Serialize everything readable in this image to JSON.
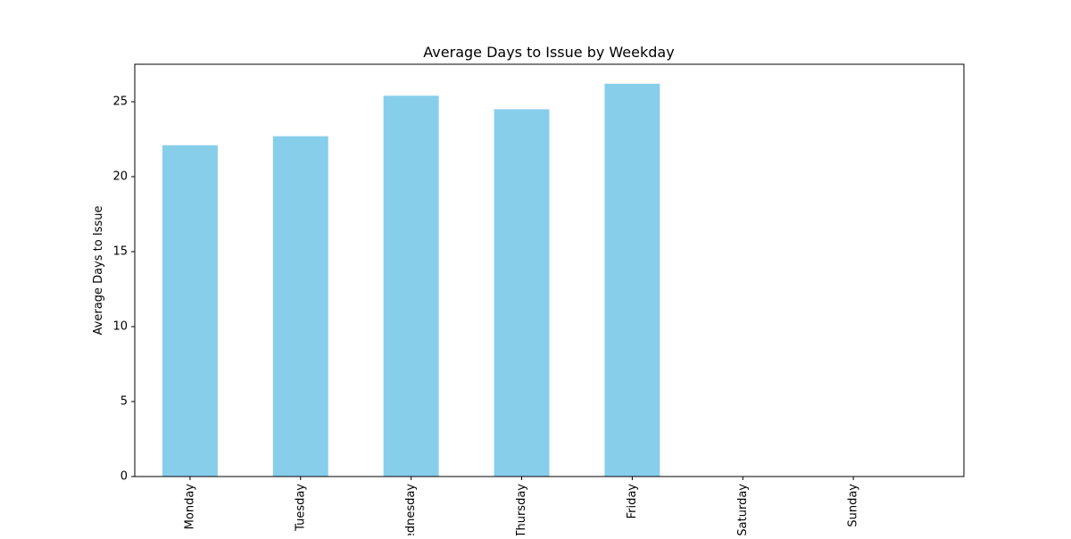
{
  "chart_data": {
    "type": "bar",
    "title": "Average Days to Issue by Weekday",
    "xlabel": "",
    "ylabel": "Average Days to Issue",
    "categories": [
      "Monday",
      "Tuesday",
      "Wednesday",
      "Thursday",
      "Friday",
      "Saturday",
      "Sunday"
    ],
    "values": [
      22.1,
      22.7,
      25.4,
      24.5,
      26.2,
      0,
      0
    ],
    "ylim": [
      0,
      27.5
    ],
    "yticks": [
      0,
      5,
      10,
      15,
      20,
      25
    ],
    "grid": false,
    "legend": "none",
    "bar_color": "#87CEEB",
    "axis_color": "#000000"
  }
}
